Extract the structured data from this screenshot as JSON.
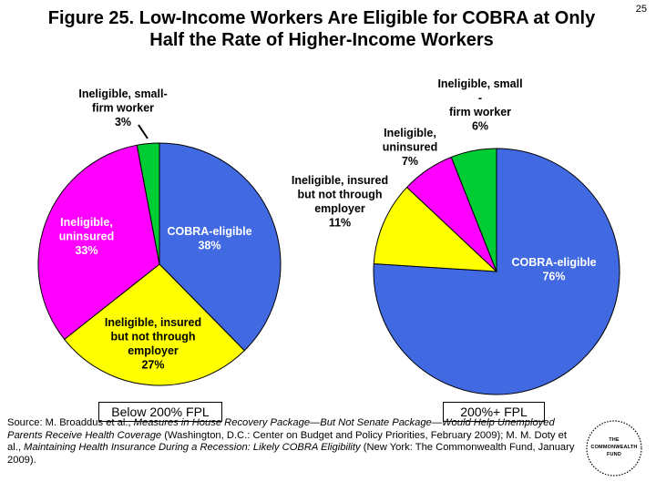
{
  "page_number": "25",
  "title_lines": [
    "Figure 25. Low-Income Workers Are Eligible for COBRA at Only",
    "Half the Rate of Higher-Income Workers"
  ],
  "chart_data": [
    {
      "type": "pie",
      "label": "Below 200% FPL",
      "slices": [
        {
          "name": "COBRA-eligible",
          "value": 38,
          "color": "#4169e1",
          "label_lines": [
            "COBRA-eligible",
            "38%"
          ]
        },
        {
          "name": "Ineligible, insured but not through employer",
          "value": 27,
          "color": "#ffff00",
          "label_lines": [
            "Ineligible, insured",
            "but not through",
            "employer",
            "27%"
          ]
        },
        {
          "name": "Ineligible, uninsured",
          "value": 33,
          "color": "#ff00ff",
          "label_lines": [
            "Ineligible,",
            "uninsured",
            "33%"
          ]
        },
        {
          "name": "Ineligible, small-firm worker",
          "value": 3,
          "color": "#00cc33",
          "label_lines": [
            "Ineligible, small-",
            "firm worker",
            "3%"
          ]
        }
      ]
    },
    {
      "type": "pie",
      "label": "200%+ FPL",
      "slices": [
        {
          "name": "COBRA-eligible",
          "value": 76,
          "color": "#4169e1",
          "label_lines": [
            "COBRA-eligible",
            "76%"
          ]
        },
        {
          "name": "Ineligible, insured but not through employer",
          "value": 11,
          "color": "#ffff00",
          "label_lines": [
            "Ineligible, insured",
            "but not through",
            "employer",
            "11%"
          ]
        },
        {
          "name": "Ineligible, uninsured",
          "value": 7,
          "color": "#ff00ff",
          "label_lines": [
            "Ineligible,",
            "uninsured",
            "7%"
          ]
        },
        {
          "name": "Ineligible, small-firm worker",
          "value": 6,
          "color": "#00cc33",
          "label_lines": [
            "Ineligible, small",
            "-",
            "firm worker",
            "6%"
          ]
        }
      ]
    }
  ],
  "source": {
    "s1": "Source: M. Broaddus et al., ",
    "s2": "Measures in House Recovery Package—But Not Senate Package—Would Help Unemployed Parents Receive Health Coverage",
    "s3": " (Washington, D.C.: Center on Budget and Policy Priorities, February 2009); M. M. Doty et al., ",
    "s4": "Maintaining Health Insurance During a Recession: Likely COBRA Eligibility",
    "s5": " (New York: The Commonwealth Fund, January 2009)."
  },
  "logo": {
    "line1": "THE",
    "line2": "COMMONWEALTH",
    "line3": "FUND"
  }
}
